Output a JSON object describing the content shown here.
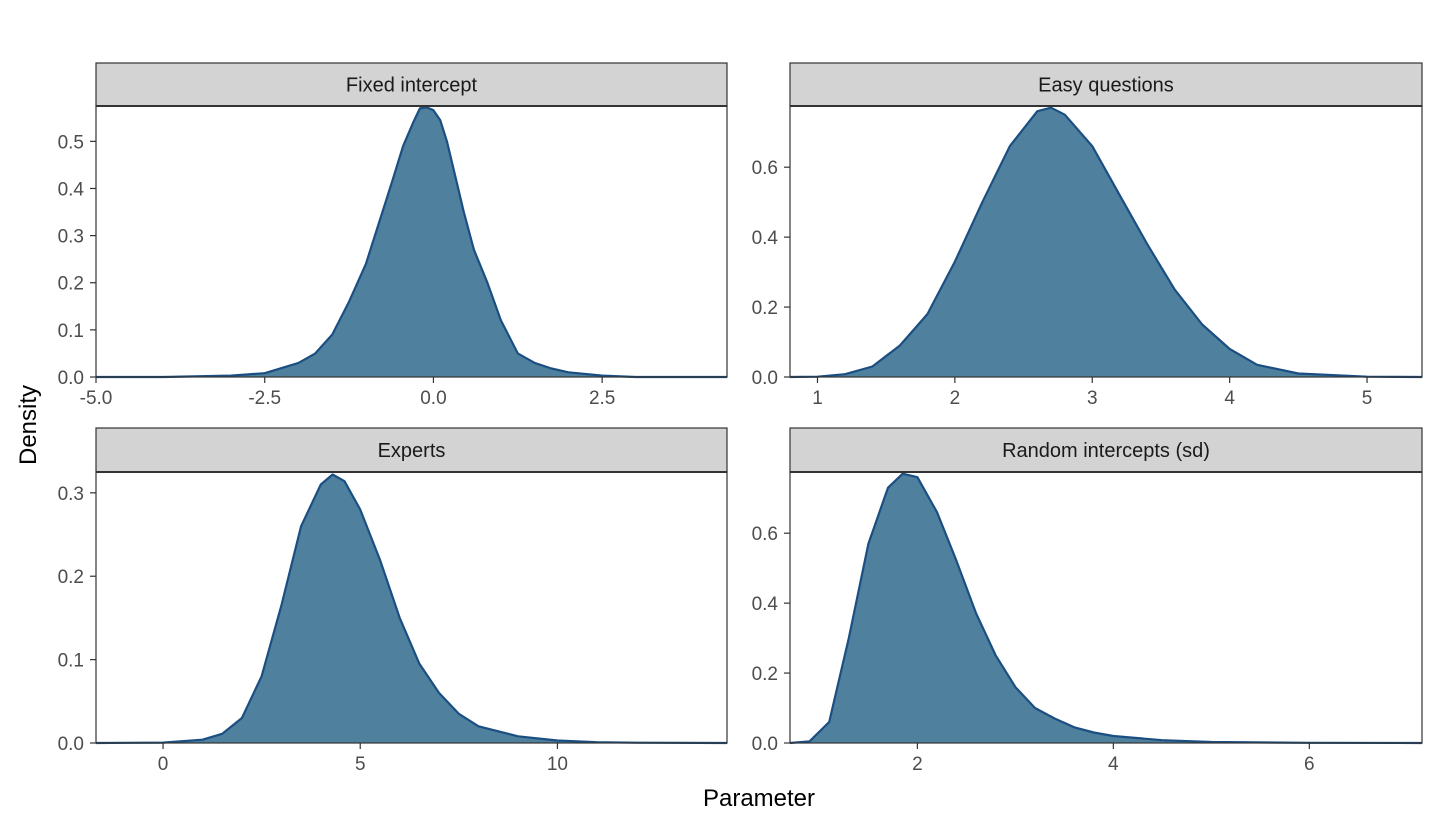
{
  "colors": {
    "fill": "#4f819e",
    "line": "#1b4f82",
    "strip_bg": "#d3d3d3",
    "frame": "#333333",
    "tick_text": "#4d4d4d"
  },
  "axes": {
    "xlabel": "Parameter",
    "ylabel": "Density"
  },
  "chart_data": [
    {
      "type": "area",
      "title": "Fixed intercept",
      "xlim": [
        -5.0,
        4.35
      ],
      "ylim": [
        0,
        0.575
      ],
      "xticks": [
        -5.0,
        -2.5,
        0.0,
        2.5
      ],
      "xtick_labels": [
        "-5.0",
        "-2.5",
        "0.0",
        "2.5"
      ],
      "yticks": [
        0.0,
        0.1,
        0.2,
        0.3,
        0.4,
        0.5
      ],
      "ytick_labels": [
        "0.0",
        "0.1",
        "0.2",
        "0.3",
        "0.4",
        "0.5"
      ],
      "x": [
        -5.0,
        -4.0,
        -3.0,
        -2.5,
        -2.0,
        -1.75,
        -1.5,
        -1.25,
        -1.0,
        -0.8,
        -0.6,
        -0.45,
        -0.3,
        -0.2,
        -0.1,
        0.0,
        0.1,
        0.2,
        0.3,
        0.45,
        0.6,
        0.8,
        1.0,
        1.25,
        1.5,
        1.75,
        2.0,
        2.5,
        3.0,
        4.35
      ],
      "y": [
        0.0,
        0.0,
        0.003,
        0.008,
        0.03,
        0.05,
        0.09,
        0.16,
        0.24,
        0.33,
        0.42,
        0.49,
        0.54,
        0.57,
        0.572,
        0.566,
        0.545,
        0.5,
        0.44,
        0.35,
        0.27,
        0.2,
        0.12,
        0.05,
        0.03,
        0.018,
        0.01,
        0.003,
        0.0,
        0.0
      ]
    },
    {
      "type": "area",
      "title": "Easy questions",
      "xlim": [
        0.8,
        5.4
      ],
      "ylim": [
        0,
        0.775
      ],
      "xticks": [
        1,
        2,
        3,
        4,
        5
      ],
      "xtick_labels": [
        "1",
        "2",
        "3",
        "4",
        "5"
      ],
      "yticks": [
        0.0,
        0.2,
        0.4,
        0.6
      ],
      "ytick_labels": [
        "0.0",
        "0.2",
        "0.4",
        "0.6"
      ],
      "x": [
        0.8,
        1.0,
        1.2,
        1.4,
        1.6,
        1.8,
        2.0,
        2.2,
        2.4,
        2.6,
        2.7,
        2.8,
        3.0,
        3.2,
        3.4,
        3.6,
        3.8,
        4.0,
        4.2,
        4.5,
        5.0,
        5.4
      ],
      "y": [
        0.0,
        0.001,
        0.008,
        0.03,
        0.09,
        0.18,
        0.33,
        0.5,
        0.66,
        0.76,
        0.77,
        0.75,
        0.66,
        0.52,
        0.38,
        0.25,
        0.15,
        0.08,
        0.035,
        0.01,
        0.001,
        0.0
      ]
    },
    {
      "type": "area",
      "title": "Experts",
      "xlim": [
        -1.7,
        14.3
      ],
      "ylim": [
        0,
        0.325
      ],
      "xticks": [
        0,
        5,
        10
      ],
      "xtick_labels": [
        "0",
        "5",
        "10"
      ],
      "yticks": [
        0.0,
        0.1,
        0.2,
        0.3
      ],
      "ytick_labels": [
        "0.0",
        "0.1",
        "0.2",
        "0.3"
      ],
      "x": [
        -1.7,
        0.0,
        1.0,
        1.5,
        2.0,
        2.5,
        3.0,
        3.5,
        4.0,
        4.3,
        4.6,
        5.0,
        5.5,
        6.0,
        6.5,
        7.0,
        7.5,
        8.0,
        9.0,
        10.0,
        11.0,
        12.0,
        14.3
      ],
      "y": [
        0.0,
        0.0005,
        0.004,
        0.011,
        0.03,
        0.08,
        0.165,
        0.26,
        0.31,
        0.322,
        0.314,
        0.28,
        0.22,
        0.15,
        0.095,
        0.06,
        0.035,
        0.02,
        0.008,
        0.003,
        0.001,
        0.0003,
        0.0
      ]
    },
    {
      "type": "area",
      "title": "Random intercepts (sd)",
      "xlim": [
        0.7,
        7.15
      ],
      "ylim": [
        0,
        0.775
      ],
      "xticks": [
        2,
        4,
        6
      ],
      "xtick_labels": [
        "2",
        "4",
        "6"
      ],
      "yticks": [
        0.0,
        0.2,
        0.4,
        0.6
      ],
      "ytick_labels": [
        "0.0",
        "0.2",
        "0.4",
        "0.6"
      ],
      "x": [
        0.7,
        0.9,
        1.1,
        1.3,
        1.5,
        1.7,
        1.85,
        2.0,
        2.2,
        2.4,
        2.6,
        2.8,
        3.0,
        3.2,
        3.4,
        3.6,
        3.8,
        4.0,
        4.5,
        5.0,
        6.0,
        7.15
      ],
      "y": [
        0.0,
        0.005,
        0.06,
        0.3,
        0.57,
        0.73,
        0.77,
        0.76,
        0.66,
        0.52,
        0.37,
        0.25,
        0.16,
        0.1,
        0.07,
        0.045,
        0.03,
        0.02,
        0.008,
        0.003,
        0.0005,
        0.0
      ]
    }
  ]
}
